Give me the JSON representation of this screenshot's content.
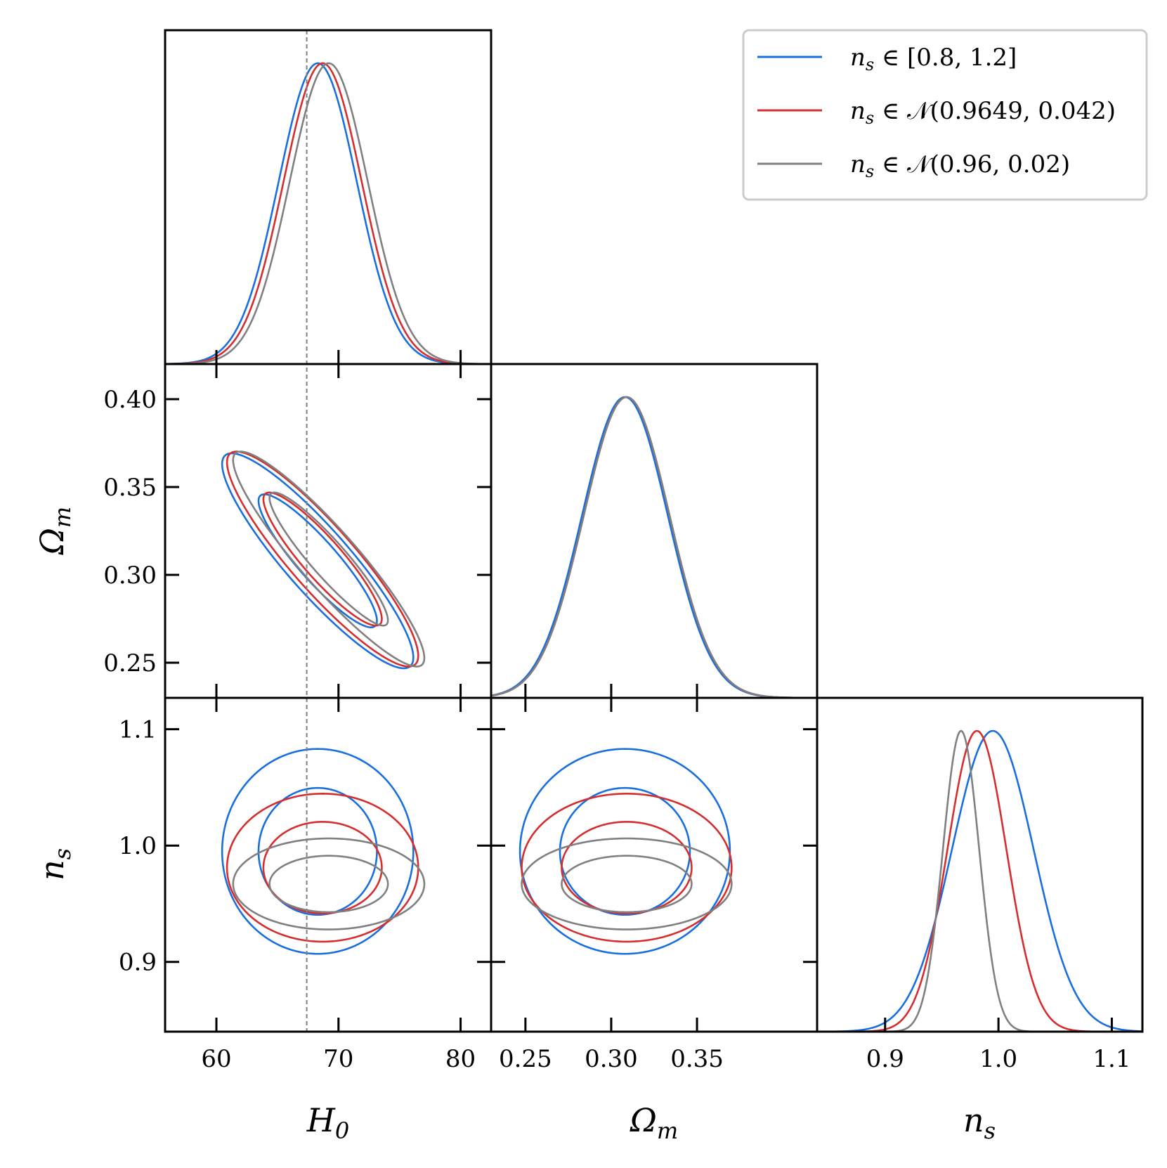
{
  "chart_data": {
    "type": "corner",
    "parameters": [
      "H_0",
      "Omega_m",
      "n_s"
    ],
    "axis_labels": {
      "H0": "H",
      "H0_sub": "0",
      "Om": "Ω",
      "Om_sub": "m",
      "ns": "n",
      "ns_sub": "s"
    },
    "ranges": {
      "H0": [
        55.8,
        82.5
      ],
      "Om": [
        0.23,
        0.42
      ],
      "ns": [
        0.84,
        1.127
      ]
    },
    "ticks": {
      "H0": [
        60,
        70,
        80
      ],
      "Om_x": [
        0.25,
        0.3,
        0.35
      ],
      "Om_y": [
        0.25,
        0.3,
        0.35,
        0.4
      ],
      "ns_x": [
        0.9,
        1.0,
        1.1
      ],
      "ns_y": [
        0.9,
        1.0,
        1.1
      ]
    },
    "tick_labels": {
      "H0": [
        "60",
        "70",
        "80"
      ],
      "Om_x": [
        "0.25",
        "0.30",
        "0.35"
      ],
      "Om_y": [
        "0.25",
        "0.30",
        "0.35",
        "0.40"
      ],
      "ns_x": [
        "0.9",
        "1.0",
        "1.1"
      ],
      "ns_y": [
        "0.9",
        "1.0",
        "1.1"
      ]
    },
    "reference": {
      "H0": 67.4,
      "color": "#808080",
      "style": "dashed"
    },
    "legend_position": "top-right",
    "series": [
      {
        "name": "n_s ∈ [0.8, 1.2]",
        "legend_prefix": "n",
        "legend_sub": "s",
        "legend_rest": " ∈ [0.8, 1.2]",
        "color": "#1a6fdf",
        "H0": {
          "mean": 68.3,
          "sd": 3.2
        },
        "Om": {
          "mean": 0.308,
          "sd": 0.025
        },
        "ns": {
          "mean": 0.995,
          "sd": 0.036
        },
        "rho_H0_Om": -0.9,
        "rho_H0_ns": 0.0,
        "rho_Om_ns": 0.0
      },
      {
        "name": "n_s ∈ 𝒩(0.9649, 0.042)",
        "legend_prefix": "n",
        "legend_sub": "s",
        "legend_rest": " ∈ 𝒩(0.9649, 0.042)",
        "color": "#d62e2e",
        "H0": {
          "mean": 68.7,
          "sd": 3.2
        },
        "Om": {
          "mean": 0.309,
          "sd": 0.025
        },
        "ns": {
          "mean": 0.981,
          "sd": 0.026
        },
        "rho_H0_Om": -0.9,
        "rho_H0_ns": 0.0,
        "rho_Om_ns": 0.0
      },
      {
        "name": "n_s ∈ 𝒩(0.96, 0.02)",
        "legend_prefix": "n",
        "legend_sub": "s",
        "legend_rest": " ∈ 𝒩(0.96, 0.02)",
        "color": "#808080",
        "H0": {
          "mean": 69.2,
          "sd": 3.2
        },
        "Om": {
          "mean": 0.309,
          "sd": 0.025
        },
        "ns": {
          "mean": 0.967,
          "sd": 0.016
        },
        "rho_H0_Om": -0.92,
        "rho_H0_ns": 0.0,
        "rho_Om_ns": 0.0
      }
    ]
  }
}
